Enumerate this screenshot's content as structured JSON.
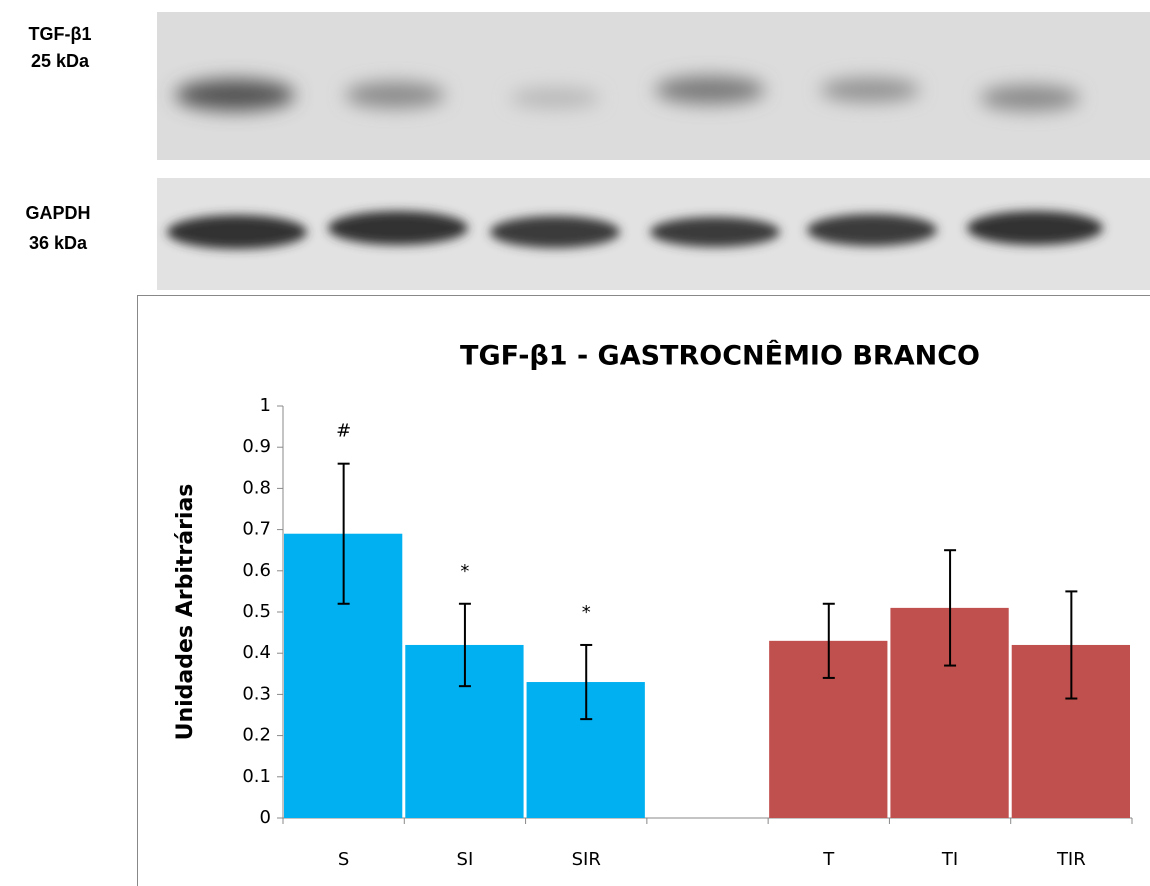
{
  "blot": {
    "rows": [
      {
        "label": "TGF-β1",
        "size": "25 kDa"
      },
      {
        "label": "GAPDH",
        "size": "36 kDa"
      }
    ]
  },
  "chart_data": {
    "type": "bar",
    "title": "TGF-β1  - GASTROCNÊMIO BRANCO",
    "y_label": "Unidades Arbitrárias",
    "categories": [
      "S",
      "SI",
      "SIR",
      null,
      "T",
      "TI",
      "TIR"
    ],
    "values": [
      0.69,
      0.42,
      0.33,
      null,
      0.43,
      0.51,
      0.42
    ],
    "errors": [
      0.17,
      0.1,
      0.09,
      null,
      0.09,
      0.14,
      0.13
    ],
    "colors": [
      "#00b0f0",
      "#00b0f0",
      "#00b0f0",
      null,
      "#c0504d",
      "#c0504d",
      "#c0504d"
    ],
    "markers": [
      "#",
      "*",
      "*",
      null,
      null,
      null,
      null
    ],
    "ylim": [
      0,
      1
    ],
    "yticks": [
      0,
      0.1,
      0.2,
      0.3,
      0.4,
      0.5,
      0.6,
      0.7,
      0.8,
      0.9,
      1
    ],
    "grid": false
  }
}
